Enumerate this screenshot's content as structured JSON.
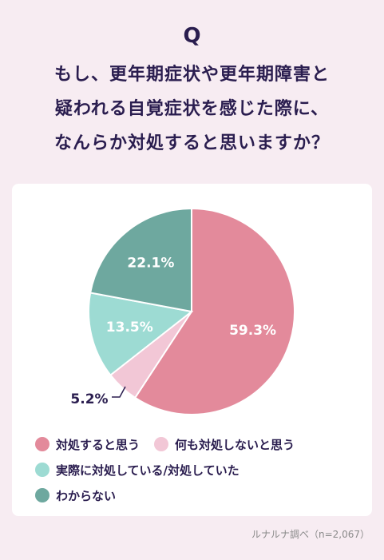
{
  "header": {
    "q_mark": "Q",
    "title_lines": [
      "もし、更年期症状や更年期障害と",
      "疑われる自覚症状を感じた際に、",
      "なんらか対処すると思いますか？"
    ]
  },
  "chart_data": {
    "type": "pie",
    "categories": [
      "対処すると思う",
      "何も対処しないと思う",
      "実際に対処している/対処していた",
      "わからない"
    ],
    "values": [
      59.3,
      5.2,
      13.5,
      22.1
    ],
    "labels": [
      "59.3%",
      "5.2%",
      "13.5%",
      "22.1%"
    ],
    "colors": [
      "#e38a9b",
      "#f2c7d6",
      "#9ddbd3",
      "#6ea89f"
    ],
    "legend_position": "bottom"
  },
  "footer": {
    "source": "ルナルナ調べ（n=2,067）"
  }
}
